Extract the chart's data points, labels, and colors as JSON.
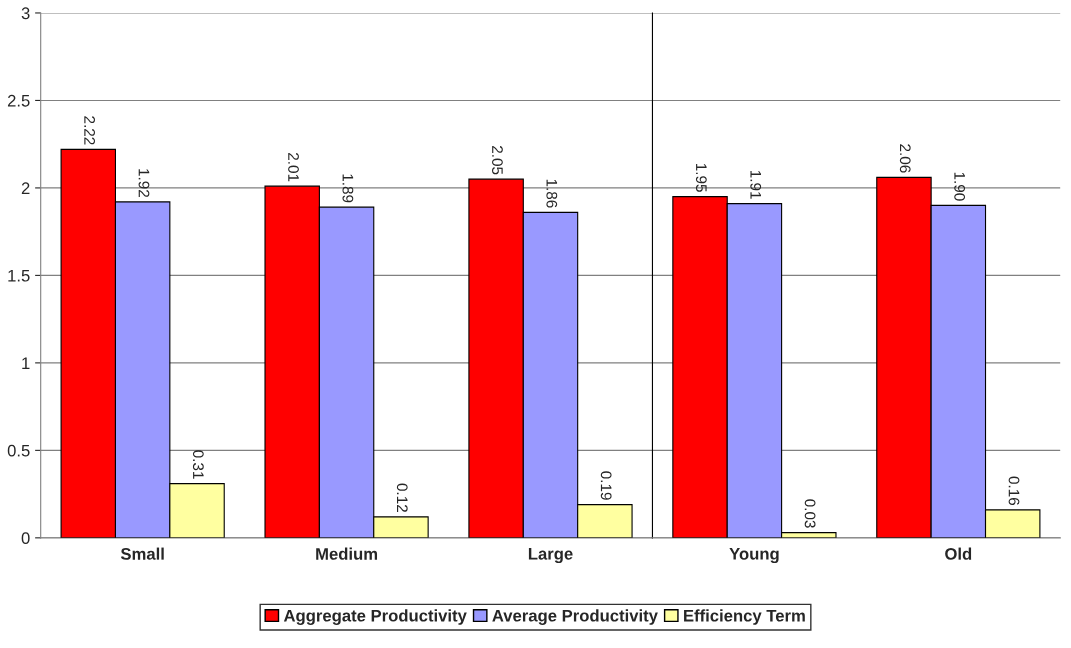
{
  "chart_data": [
    {
      "type": "bar",
      "categories": [
        "Small",
        "Medium",
        "Large"
      ],
      "series": [
        {
          "name": "Aggregate Productivity",
          "color": "#ff0000",
          "values": [
            2.22,
            2.01,
            2.05
          ],
          "value_labels": [
            "2.22",
            "2.01",
            "2.05"
          ]
        },
        {
          "name": "Average Productivity",
          "color": "#9999ff",
          "values": [
            1.92,
            1.89,
            1.86
          ],
          "value_labels": [
            "1.92",
            "1.89",
            "1.86"
          ]
        },
        {
          "name": "Efficiency Term",
          "color": "#ffffa0",
          "values": [
            0.31,
            0.12,
            0.19
          ],
          "value_labels": [
            "0.31",
            "0.12",
            "0.19"
          ]
        }
      ],
      "ylim": [
        0,
        3
      ],
      "yticks": [
        0,
        0.5,
        1,
        1.5,
        2,
        2.5,
        3
      ],
      "grid": "y",
      "legend": "bottom"
    },
    {
      "type": "bar",
      "categories": [
        "Young",
        "Old"
      ],
      "series": [
        {
          "color": "#ff0000",
          "values": [
            1.95,
            2.06
          ],
          "value_labels": [
            "1.95",
            "2.06"
          ]
        },
        {
          "color": "#9999ff",
          "values": [
            1.91,
            1.9
          ],
          "value_labels": [
            "1.91",
            "1.90"
          ]
        },
        {
          "color": "#ffffa0",
          "values": [
            0.03,
            0.16
          ],
          "value_labels": [
            "0.03",
            "0.16"
          ]
        }
      ],
      "ylim": [
        0,
        3
      ],
      "yticks": [
        0,
        0.5,
        1,
        1.5,
        2,
        2.5,
        3
      ],
      "grid": "y",
      "tick_labels": "x"
    }
  ]
}
